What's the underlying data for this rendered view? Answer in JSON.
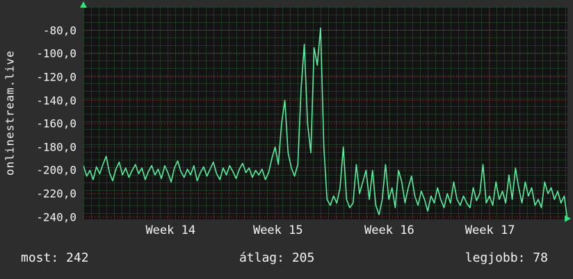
{
  "panel": {
    "background": "#2d2d2d",
    "plot_background": "#131313",
    "text_color": "#f5f5f5",
    "accent_green": "#35e27d",
    "grid_minor_color": "#3e844e",
    "grid_major_color": "#9c4646"
  },
  "chart_data": {
    "type": "line",
    "title": "",
    "xlabel": "",
    "ylabel": "onlinestream.live",
    "line_color": "#57f0a0",
    "grid": true,
    "legend": "none",
    "ylim": [
      -242,
      -60
    ],
    "y_ticks": [
      {
        "value": -80,
        "label": "-80,0"
      },
      {
        "value": -100,
        "label": "-100,0"
      },
      {
        "value": -120,
        "label": "-120,0"
      },
      {
        "value": -140,
        "label": "-140,0"
      },
      {
        "value": -160,
        "label": "-160,0"
      },
      {
        "value": -180,
        "label": "-180,0"
      },
      {
        "value": -200,
        "label": "-200,0"
      },
      {
        "value": -220,
        "label": "-220,0"
      },
      {
        "value": -240,
        "label": "-240,0"
      }
    ],
    "x_ticks": [
      {
        "pos": 0.18,
        "label": "Week 14"
      },
      {
        "pos": 0.402,
        "label": "Week 15"
      },
      {
        "pos": 0.632,
        "label": "Week 16"
      },
      {
        "pos": 0.84,
        "label": "Week 17"
      }
    ],
    "series": [
      {
        "name": "onlinestream.live",
        "values": [
          -196,
          -205,
          -200,
          -208,
          -197,
          -203,
          -195,
          -188,
          -202,
          -209,
          -199,
          -193,
          -204,
          -198,
          -206,
          -200,
          -195,
          -203,
          -198,
          -208,
          -201,
          -196,
          -204,
          -199,
          -207,
          -196,
          -202,
          -210,
          -198,
          -192,
          -201,
          -206,
          -199,
          -204,
          -196,
          -209,
          -202,
          -197,
          -205,
          -199,
          -193,
          -203,
          -208,
          -198,
          -204,
          -196,
          -201,
          -207,
          -199,
          -194,
          -202,
          -198,
          -206,
          -200,
          -204,
          -199,
          -208,
          -202,
          -190,
          -180,
          -195,
          -160,
          -140,
          -185,
          -198,
          -205,
          -195,
          -130,
          -92,
          -160,
          -185,
          -95,
          -110,
          -78,
          -180,
          -225,
          -230,
          -222,
          -228,
          -215,
          -180,
          -225,
          -232,
          -228,
          -195,
          -220,
          -210,
          -200,
          -225,
          -200,
          -230,
          -238,
          -225,
          -195,
          -225,
          -215,
          -232,
          -200,
          -210,
          -228,
          -215,
          -205,
          -222,
          -230,
          -218,
          -225,
          -235,
          -222,
          -228,
          -215,
          -225,
          -232,
          -220,
          -228,
          -210,
          -225,
          -230,
          -222,
          -228,
          -232,
          -215,
          -226,
          -220,
          -195,
          -228,
          -222,
          -230,
          -210,
          -225,
          -218,
          -228,
          -204,
          -225,
          -198,
          -215,
          -228,
          -210,
          -222,
          -215,
          -230,
          -225,
          -232,
          -210,
          -220,
          -215,
          -225,
          -218,
          -228,
          -222,
          -242
        ]
      }
    ]
  },
  "stats": [
    {
      "label": "most:",
      "value": "242"
    },
    {
      "label": "átlag:",
      "value": "205"
    },
    {
      "label": "legjobb:",
      "value": "78"
    }
  ]
}
